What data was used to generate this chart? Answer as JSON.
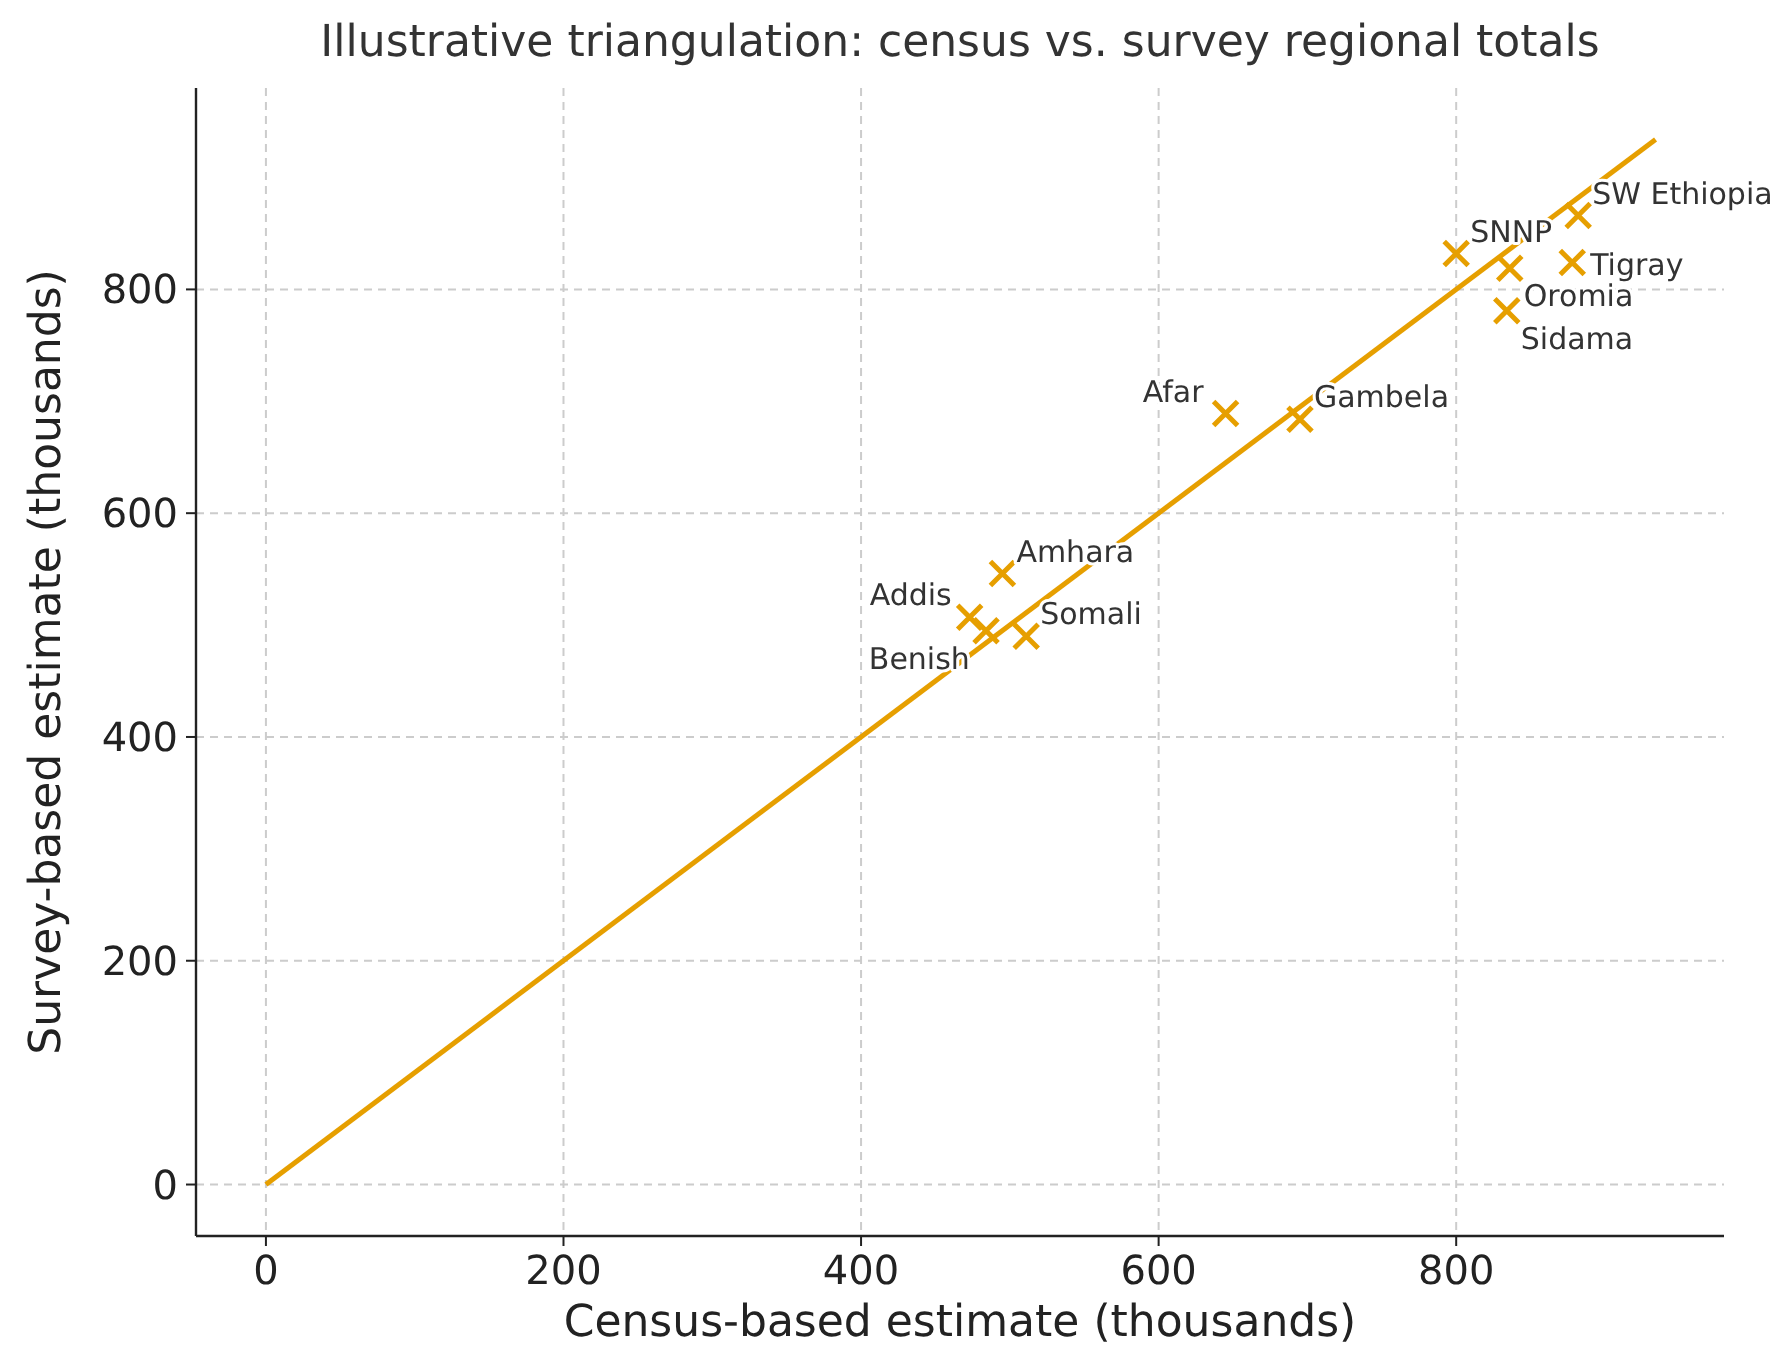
{
  "chart_data": {
    "type": "scatter",
    "title": "Illustrative triangulation: census vs. survey regional totals",
    "xlabel": "Census-based estimate (thousands)",
    "ylabel": "Survey-based estimate (thousands)",
    "x": [
      495,
      473,
      484,
      511,
      645,
      695,
      800,
      836,
      834,
      878,
      882
    ],
    "series": [
      {
        "color": "#e69f00",
        "marker": "cross",
        "values": [
          546,
          507,
          495,
          490,
          689,
          684,
          832,
          819,
          781,
          824,
          866
        ]
      },
      {
        "type": "line",
        "color": "#e69f00",
        "line_style": "solid",
        "marker": "none",
        "x": [
          0,
          934
        ],
        "values": [
          0,
          934
        ]
      }
    ],
    "annotations": [
      {
        "text": "Amhara",
        "x": 495,
        "y": 546
      },
      {
        "text": "Addis",
        "x": 473,
        "y": 507
      },
      {
        "text": "Benish",
        "x": 484,
        "y": 495
      },
      {
        "text": "Somali",
        "x": 511,
        "y": 490
      },
      {
        "text": "Afar",
        "x": 645,
        "y": 689
      },
      {
        "text": "Gambela",
        "x": 695,
        "y": 684
      },
      {
        "text": "SNNP",
        "x": 800,
        "y": 832
      },
      {
        "text": "Oromia",
        "x": 836,
        "y": 819
      },
      {
        "text": "Sidama",
        "x": 834,
        "y": 781
      },
      {
        "text": "Tigray",
        "x": 878,
        "y": 824
      },
      {
        "text": "SW Ethiopia",
        "x": 882,
        "y": 866
      }
    ],
    "xlim": [
      -47,
      980
    ],
    "ylim": [
      -46,
      980
    ],
    "xticks": [
      0,
      200,
      400,
      600,
      800
    ],
    "yticks": [
      0,
      200,
      400,
      600,
      800
    ],
    "grid": true
  }
}
